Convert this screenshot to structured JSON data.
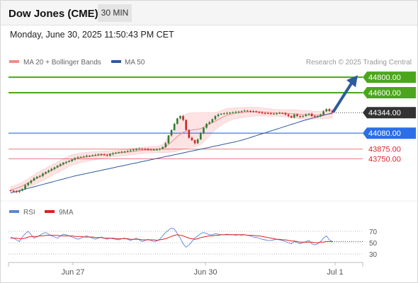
{
  "header": {
    "symbol": "Dow Jones (CME)",
    "interval": "30 MIN",
    "datetime": "Monday, June 30, 2025 11:50:43 PM CET"
  },
  "legend": {
    "items": [
      {
        "label": "MA 20 + Bollinger Bands",
        "color": "#f28b8b"
      },
      {
        "label": "MA 50",
        "color": "#2e5b9e"
      }
    ],
    "credit": "Research © 2025 Trading Central"
  },
  "levels": [
    {
      "value": "44800.00",
      "kind": "target",
      "color": "#4ca61b"
    },
    {
      "value": "44600.00",
      "kind": "target",
      "color": "#4ca61b"
    },
    {
      "value": "44344.00",
      "kind": "last",
      "color": "#333333"
    },
    {
      "value": "44080.00",
      "kind": "pivot",
      "color": "#2a6ee8"
    },
    {
      "value": "43875.00",
      "kind": "support",
      "color": "#d9262a"
    },
    {
      "value": "43750.00",
      "kind": "support",
      "color": "#d9262a"
    }
  ],
  "rsi_legend": {
    "items": [
      {
        "label": "RSI",
        "color": "#5b86d6"
      },
      {
        "label": "9MA",
        "color": "#e02020"
      }
    ]
  },
  "rsi_axis": [
    "70",
    "50",
    "30"
  ],
  "x_axis": [
    "Jun 27",
    "Jun 30",
    "Jul 1"
  ],
  "colors": {
    "up": "#2e7d32",
    "down": "#c62828",
    "band": "#fde3e3",
    "ma20": "#f28b8b",
    "ma50": "#2e5b9e",
    "arrow": "#2e5b9e"
  },
  "chart_data": {
    "type": "candlestick",
    "title": "Dow Jones (CME)",
    "interval": "30 MIN",
    "ylim": [
      43290,
      44910
    ],
    "x_labels": [
      "Jun 27",
      "Jun 30",
      "Jul 1"
    ],
    "closes": [
      43340,
      43330,
      43325,
      43340,
      43360,
      43410,
      43440,
      43470,
      43500,
      43520,
      43530,
      43560,
      43580,
      43600,
      43620,
      43640,
      43660,
      43680,
      43700,
      43710,
      43720,
      43740,
      43760,
      43770,
      43775,
      43780,
      43790,
      43790,
      43795,
      43800,
      43810,
      43805,
      43800,
      43790,
      43810,
      43820,
      43830,
      43835,
      43840,
      43845,
      43850,
      43860,
      43870,
      43875,
      43880,
      43878,
      43875,
      43870,
      43865,
      43868,
      43870,
      43880,
      43900,
      43950,
      44050,
      44120,
      44200,
      44270,
      44300,
      44250,
      44120,
      44020,
      43990,
      43950,
      44000,
      44080,
      44150,
      44200,
      44220,
      44260,
      44300,
      44320,
      44330,
      44335,
      44340,
      44345,
      44348,
      44352,
      44358,
      44362,
      44370,
      44365,
      44360,
      44362,
      44350,
      44345,
      44340,
      44338,
      44335,
      44330,
      44332,
      44335,
      44340,
      44338,
      44320,
      44300,
      44280,
      44320,
      44300,
      44290,
      44300,
      44320,
      44330,
      44300,
      44290,
      44300,
      44320,
      44360,
      44390,
      44365,
      44344
    ],
    "ma20": [
      43350,
      43360,
      43370,
      43385,
      43400,
      43420,
      43440,
      43460,
      43480,
      43500,
      43520,
      43540,
      43560,
      43580,
      43600,
      43620,
      43640,
      43660,
      43680,
      43700,
      43720,
      43735,
      43745,
      43755,
      43765,
      43770,
      43775,
      43780,
      43785,
      43790,
      43795,
      43800,
      43805,
      43808,
      43812,
      43816,
      43820,
      43824,
      43828,
      43832,
      43836,
      43840,
      43845,
      43850,
      43855,
      43860,
      43862,
      43864,
      43866,
      43868,
      43870,
      43875,
      43885,
      43905,
      43935,
      43965,
      44000,
      44035,
      44065,
      44090,
      44105,
      44115,
      44120,
      44125,
      44130,
      44140,
      44155,
      44175,
      44195,
      44215,
      44235,
      44255,
      44275,
      44295,
      44310,
      44322,
      44330,
      44336,
      44340,
      44345,
      44350,
      44352,
      44354,
      44356,
      44356,
      44355,
      44353,
      44350,
      44347,
      44344,
      44342,
      44340,
      44339,
      44338,
      44336,
      44333,
      44330,
      44328,
      44325,
      44320,
      44318,
      44315,
      44314,
      44313,
      44312,
      44312,
      44314,
      44318,
      44322,
      44326,
      44330
    ],
    "band_width": [
      40,
      42,
      44,
      46,
      48,
      52,
      56,
      60,
      64,
      68,
      70,
      70,
      70,
      70,
      70,
      70,
      70,
      70,
      70,
      70,
      70,
      68,
      66,
      64,
      62,
      60,
      58,
      56,
      54,
      52,
      50,
      48,
      46,
      44,
      42,
      40,
      40,
      40,
      40,
      40,
      40,
      40,
      40,
      40,
      40,
      40,
      40,
      40,
      40,
      40,
      40,
      45,
      55,
      75,
      100,
      130,
      160,
      185,
      205,
      215,
      220,
      222,
      222,
      220,
      215,
      205,
      190,
      170,
      150,
      130,
      110,
      100,
      95,
      90,
      85,
      80,
      75,
      70,
      68,
      66,
      64,
      62,
      60,
      58,
      56,
      54,
      52,
      50,
      48,
      46,
      44,
      44,
      44,
      44,
      46,
      48,
      50,
      52,
      54,
      54,
      54,
      54,
      54,
      52,
      50,
      48,
      48,
      50,
      52,
      54,
      56
    ],
    "ma50": [
      43310,
      43320,
      43330,
      43340,
      43350,
      43360,
      43370,
      43380,
      43390,
      43400,
      43410,
      43420,
      43430,
      43440,
      43450,
      43460,
      43470,
      43480,
      43490,
      43500,
      43510,
      43520,
      43530,
      43538,
      43546,
      43554,
      43562,
      43570,
      43578,
      43586,
      43594,
      43602,
      43610,
      43618,
      43626,
      43634,
      43642,
      43650,
      43658,
      43666,
      43674,
      43682,
      43690,
      43698,
      43706,
      43714,
      43722,
      43730,
      43738,
      43746,
      43754,
      43762,
      43770,
      43778,
      43786,
      43794,
      43802,
      43810,
      43818,
      43826,
      43834,
      43842,
      43850,
      43858,
      43866,
      43874,
      43882,
      43890,
      43898,
      43906,
      43914,
      43922,
      43930,
      43938,
      43946,
      43954,
      43962,
      43970,
      43980,
      43990,
      44000,
      44012,
      44024,
      44036,
      44048,
      44060,
      44072,
      44084,
      44096,
      44108,
      44120,
      44132,
      44144,
      44156,
      44168,
      44180,
      44192,
      44204,
      44216,
      44228,
      44240,
      44250,
      44260,
      44270,
      44280,
      44290,
      44300,
      44310,
      44320,
      44330,
      44340
    ],
    "rsi": [
      60,
      58,
      55,
      52,
      60,
      66,
      70,
      64,
      58,
      60,
      63,
      66,
      68,
      65,
      62,
      60,
      58,
      62,
      65,
      64,
      62,
      60,
      58,
      56,
      58,
      60,
      62,
      60,
      58,
      56,
      58,
      60,
      58,
      56,
      58,
      57,
      56,
      55,
      57,
      58,
      56,
      54,
      56,
      58,
      55,
      52,
      54,
      56,
      54,
      52,
      53,
      56,
      62,
      68,
      72,
      76,
      74,
      66,
      58,
      48,
      42,
      46,
      52,
      58,
      62,
      66,
      68,
      66,
      64,
      64,
      66,
      65,
      64,
      64,
      65,
      64,
      64,
      63,
      64,
      63,
      64,
      63,
      62,
      60,
      59,
      58,
      56,
      55,
      54,
      54,
      55,
      56,
      55,
      54,
      52,
      50,
      48,
      52,
      50,
      48,
      50,
      52,
      54,
      48,
      46,
      48,
      52,
      58,
      62,
      55,
      52
    ],
    "rsi_ma": [
      58,
      58,
      58,
      57,
      57,
      58,
      60,
      61,
      61,
      61,
      62,
      62,
      63,
      63,
      63,
      63,
      63,
      62,
      62,
      62,
      62,
      62,
      61,
      61,
      61,
      60,
      60,
      60,
      60,
      59,
      59,
      59,
      58,
      58,
      58,
      58,
      57,
      57,
      57,
      57,
      57,
      56,
      56,
      56,
      56,
      55,
      55,
      55,
      55,
      55,
      54,
      55,
      56,
      57,
      59,
      61,
      63,
      64,
      63,
      62,
      60,
      58,
      57,
      56,
      57,
      59,
      60,
      61,
      62,
      62,
      63,
      63,
      64,
      64,
      64,
      64,
      64,
      64,
      64,
      64,
      64,
      63,
      63,
      63,
      62,
      62,
      61,
      60,
      59,
      58,
      57,
      56,
      56,
      55,
      55,
      54,
      53,
      53,
      52,
      51,
      51,
      51,
      51,
      51,
      50,
      50,
      51,
      51,
      52,
      52,
      52
    ]
  }
}
